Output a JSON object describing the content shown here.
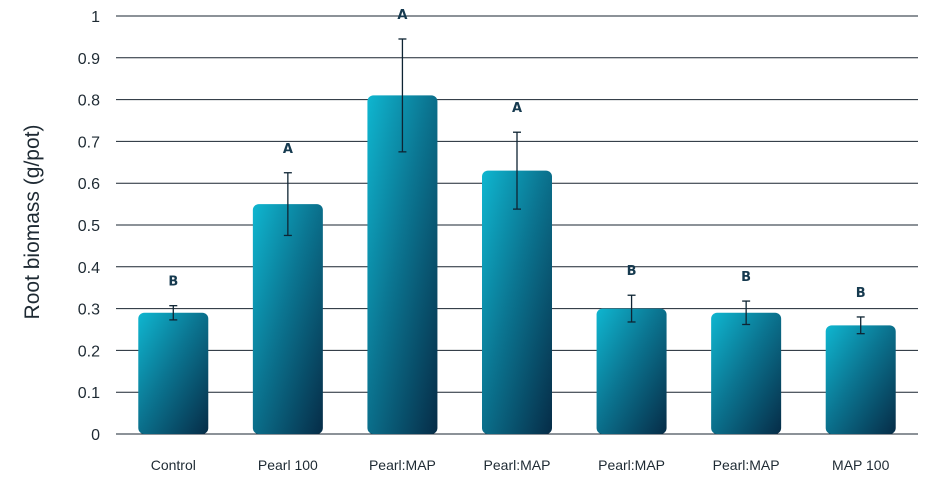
{
  "chart_data": {
    "type": "bar",
    "categories": [
      "Control",
      "Pearl 100",
      "Pearl:MAP",
      "Pearl:MAP",
      "Pearl:MAP",
      "Pearl:MAP",
      "MAP 100"
    ],
    "values": [
      0.29,
      0.55,
      0.81,
      0.63,
      0.3,
      0.29,
      0.26
    ],
    "error": [
      0.017,
      0.075,
      0.135,
      0.092,
      0.032,
      0.028,
      0.02
    ],
    "significance": [
      "B",
      "A",
      "A",
      "A",
      "B",
      "B",
      "B"
    ],
    "ylabel": "Root biomass (g/pot)",
    "xlabel": "",
    "ylim": [
      0,
      1
    ],
    "yticks": [
      "0",
      "0.1",
      "0.2",
      "0.3",
      "0.4",
      "0.5",
      "0.6",
      "0.7",
      "0.8",
      "0.9",
      "1"
    ],
    "grid": true,
    "colors": {
      "bar_light": "#0fb6d0",
      "bar_mid": "#0b7591",
      "bar_dark": "#062c47",
      "gridline": "#1a2530",
      "error_bar": "#0e2433"
    }
  }
}
